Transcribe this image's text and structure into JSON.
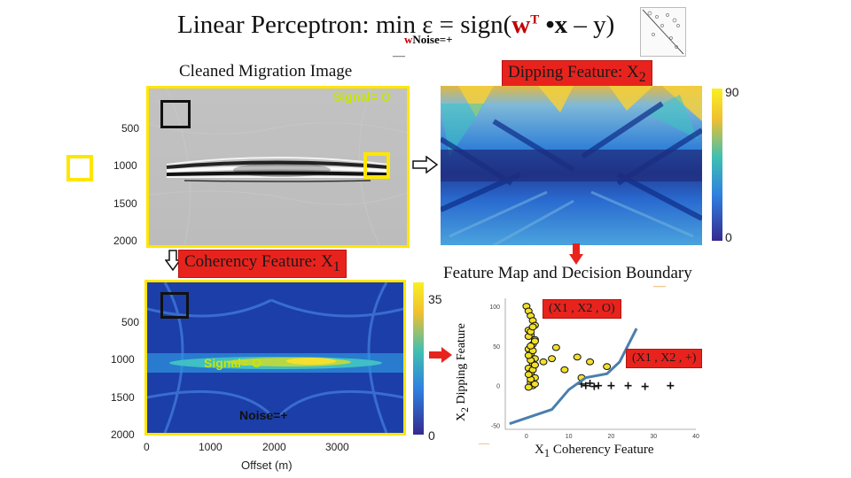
{
  "title": {
    "prefix": "Linear Perceptron: ",
    "min": "min",
    "epsilon_eq": "ε = sign(",
    "w": "w",
    "sup_t": "T",
    "dot_x": " •x",
    "minus_y": " – y",
    "close": ")",
    "subscript_w": "w",
    "subscript_noise": "Noise=+",
    "dash": "—"
  },
  "migration": {
    "title": "Cleaned Migration Image",
    "signal_label": "Signal= O",
    "y_ticks": [
      "500",
      "1000",
      "1500",
      "2000"
    ]
  },
  "dipping": {
    "label_main": "Dipping Feature: X",
    "label_sub": "2",
    "cbar_max": "90",
    "cbar_min": "0"
  },
  "coherency": {
    "label_main": "Coherency Feature: X",
    "label_sub": "1",
    "signal_label": "Signal= O",
    "noise_label": "Noise=+",
    "y_ticks": [
      "500",
      "1000",
      "1500",
      "2000"
    ],
    "x_ticks": [
      "0",
      "1000",
      "2000",
      "3000"
    ],
    "x_label": "Offset (m)",
    "cbar_max": "35",
    "cbar_min": "0"
  },
  "feature_map": {
    "title": "Feature Map and Decision Boundary",
    "y_label_main": "X",
    "y_label_sub": "2",
    "y_label_rest": " Dipping Feature",
    "x_label_main": "X",
    "x_label_sub": "1",
    "x_label_rest": " Coherency Feature",
    "box_o": "(X1 , X2 , O)",
    "box_plus": "(X1 , X2 , +)",
    "y_ticks": [
      "100",
      "50",
      "0",
      "-50"
    ],
    "x_ticks": [
      "0",
      "10",
      "20",
      "30",
      "40"
    ],
    "dash": "—"
  },
  "chart_data": {
    "type": "scatter",
    "title": "Feature Map and Decision Boundary",
    "xlabel": "X1 Coherency Feature",
    "ylabel": "X2 Dipping Feature",
    "xlim": [
      -5,
      40
    ],
    "ylim": [
      -55,
      110
    ],
    "series": [
      {
        "name": "Signal (O)",
        "marker": "circle",
        "x": [
          0,
          0.5,
          1,
          1.5,
          2,
          0.5,
          1,
          2,
          1.5,
          0.5,
          1,
          2,
          1.5,
          0.5,
          1,
          2,
          1,
          1.5,
          0.5,
          2,
          1,
          0.5,
          1.5,
          2,
          1,
          0.5,
          1.5,
          1,
          2,
          0.5,
          1,
          1.5,
          4,
          7,
          6,
          9,
          13,
          12,
          15,
          19
        ],
        "y": [
          100,
          94,
          88,
          82,
          76,
          70,
          64,
          58,
          52,
          46,
          40,
          34,
          28,
          22,
          16,
          10,
          4,
          0,
          -2,
          2,
          8,
          14,
          20,
          26,
          32,
          38,
          44,
          50,
          56,
          62,
          68,
          74,
          30,
          48,
          34,
          20,
          10,
          36,
          30,
          24
        ]
      },
      {
        "name": "Noise (+)",
        "marker": "plus",
        "x": [
          13,
          14,
          15,
          16,
          17,
          20,
          24,
          28,
          34
        ],
        "y": [
          2,
          0,
          3,
          -1,
          0,
          0,
          0,
          -1,
          0
        ]
      },
      {
        "name": "Decision boundary",
        "marker": "line",
        "x": [
          -4,
          6,
          10,
          14,
          19,
          22,
          26
        ],
        "y": [
          -48,
          -30,
          -5,
          10,
          15,
          30,
          72
        ]
      }
    ]
  }
}
